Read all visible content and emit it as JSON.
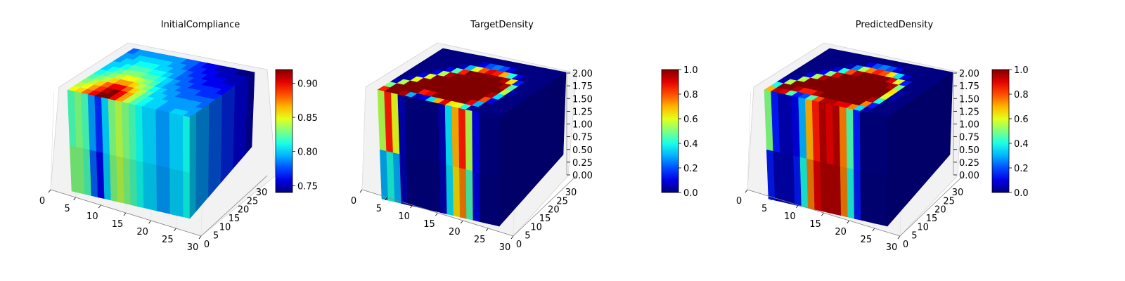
{
  "chart_data": [
    {
      "type": "3d-voxel",
      "title": "InitialCompliance",
      "x_ticks": [
        "0",
        "5",
        "10",
        "15",
        "20",
        "25",
        "30"
      ],
      "y_ticks": [
        "0",
        "5",
        "10",
        "15",
        "20",
        "25",
        "30"
      ],
      "z_ticks": [],
      "colormap": "jet",
      "colorbar": {
        "min": 0.74,
        "max": 0.92,
        "ticks": [
          "0.75",
          "0.80",
          "0.85",
          "0.90"
        ]
      },
      "top_face": [
        [
          0.85,
          0.86,
          0.88,
          0.9,
          0.92,
          0.92,
          0.9,
          0.87,
          0.84,
          0.82,
          0.81,
          0.8,
          0.8,
          0.79,
          0.79,
          0.8,
          0.8,
          0.79
        ],
        [
          0.84,
          0.85,
          0.87,
          0.89,
          0.91,
          0.92,
          0.9,
          0.87,
          0.84,
          0.82,
          0.81,
          0.8,
          0.8,
          0.79,
          0.79,
          0.79,
          0.79,
          0.79
        ],
        [
          0.83,
          0.84,
          0.86,
          0.88,
          0.9,
          0.9,
          0.88,
          0.86,
          0.84,
          0.82,
          0.8,
          0.8,
          0.79,
          0.79,
          0.79,
          0.79,
          0.79,
          0.78
        ],
        [
          0.82,
          0.83,
          0.84,
          0.86,
          0.87,
          0.87,
          0.86,
          0.84,
          0.83,
          0.81,
          0.8,
          0.79,
          0.79,
          0.78,
          0.78,
          0.78,
          0.78,
          0.78
        ],
        [
          0.81,
          0.82,
          0.83,
          0.84,
          0.85,
          0.85,
          0.84,
          0.83,
          0.82,
          0.8,
          0.79,
          0.79,
          0.78,
          0.78,
          0.78,
          0.77,
          0.77,
          0.77
        ],
        [
          0.8,
          0.81,
          0.82,
          0.83,
          0.83,
          0.83,
          0.82,
          0.82,
          0.81,
          0.8,
          0.79,
          0.78,
          0.78,
          0.77,
          0.77,
          0.77,
          0.77,
          0.76
        ],
        [
          0.8,
          0.8,
          0.81,
          0.82,
          0.82,
          0.82,
          0.81,
          0.81,
          0.8,
          0.79,
          0.78,
          0.78,
          0.77,
          0.77,
          0.76,
          0.76,
          0.76,
          0.76
        ],
        [
          0.79,
          0.8,
          0.8,
          0.81,
          0.81,
          0.81,
          0.8,
          0.8,
          0.79,
          0.79,
          0.78,
          0.77,
          0.77,
          0.76,
          0.76,
          0.76,
          0.75,
          0.75
        ],
        [
          0.79,
          0.79,
          0.8,
          0.8,
          0.8,
          0.8,
          0.8,
          0.79,
          0.79,
          0.78,
          0.77,
          0.77,
          0.76,
          0.76,
          0.75,
          0.75,
          0.75,
          0.75
        ],
        [
          0.78,
          0.79,
          0.79,
          0.79,
          0.79,
          0.79,
          0.79,
          0.79,
          0.78,
          0.78,
          0.77,
          0.76,
          0.76,
          0.75,
          0.75,
          0.75,
          0.74,
          0.74
        ]
      ],
      "front_face": [
        0.82,
        0.83,
        0.82,
        0.79,
        0.77,
        0.8,
        0.83,
        0.84,
        0.83,
        0.82,
        0.81,
        0.8,
        0.8,
        0.79,
        0.79,
        0.8,
        0.8,
        0.81
      ],
      "front_face_lower": [
        0.83,
        0.83,
        0.82,
        0.78,
        0.76,
        0.8,
        0.83,
        0.84,
        0.83,
        0.82,
        0.81,
        0.8,
        0.8,
        0.79,
        0.79,
        0.8,
        0.8,
        0.81
      ],
      "side_face": [
        0.8,
        0.79,
        0.79,
        0.78,
        0.78,
        0.77,
        0.77,
        0.76,
        0.76,
        0.75
      ]
    },
    {
      "type": "3d-voxel",
      "title": "TargetDensity",
      "x_ticks": [
        "0",
        "5",
        "10",
        "15",
        "20",
        "25",
        "30"
      ],
      "y_ticks": [
        "0",
        "5",
        "10",
        "15",
        "20",
        "25",
        "30"
      ],
      "z_ticks": [
        "0.00",
        "0.25",
        "0.50",
        "0.75",
        "1.00",
        "1.25",
        "1.50",
        "1.75",
        "2.00"
      ],
      "colormap": "jet",
      "colorbar": {
        "min": 0,
        "max": 1,
        "ticks": [
          "0.0",
          "0.2",
          "0.4",
          "0.6",
          "0.8",
          "1.0"
        ]
      },
      "top_face": [
        [
          0.85,
          1.0,
          1.0,
          0.95,
          0.3,
          0.05,
          0.1,
          0.35,
          0.7,
          0.9,
          0.65,
          0.6,
          0.4,
          0.05,
          0.0,
          0.0,
          0.0,
          0.0
        ],
        [
          0.5,
          1.0,
          1.0,
          1.0,
          1.0,
          0.85,
          0.9,
          1.0,
          1.0,
          1.0,
          1.0,
          1.0,
          0.9,
          0.3,
          0.0,
          0.0,
          0.0,
          0.0
        ],
        [
          0.05,
          0.55,
          1.0,
          1.0,
          1.0,
          1.0,
          1.0,
          1.0,
          1.0,
          1.0,
          1.0,
          1.0,
          1.0,
          0.8,
          0.1,
          0.0,
          0.0,
          0.0
        ],
        [
          0.0,
          0.05,
          0.6,
          1.0,
          1.0,
          1.0,
          1.0,
          1.0,
          1.0,
          1.0,
          1.0,
          1.0,
          1.0,
          0.95,
          0.35,
          0.0,
          0.0,
          0.0
        ],
        [
          0.0,
          0.0,
          0.1,
          0.6,
          1.0,
          1.0,
          1.0,
          1.0,
          1.0,
          1.0,
          1.0,
          1.0,
          1.0,
          1.0,
          0.55,
          0.05,
          0.0,
          0.0
        ],
        [
          0.0,
          0.0,
          0.0,
          0.1,
          0.55,
          0.95,
          1.0,
          1.0,
          1.0,
          1.0,
          1.0,
          1.0,
          1.0,
          0.95,
          0.45,
          0.0,
          0.0,
          0.0
        ],
        [
          0.0,
          0.0,
          0.0,
          0.0,
          0.1,
          0.45,
          0.85,
          1.0,
          1.0,
          1.0,
          1.0,
          1.0,
          0.95,
          0.65,
          0.15,
          0.0,
          0.0,
          0.0
        ],
        [
          0.0,
          0.0,
          0.0,
          0.0,
          0.0,
          0.05,
          0.3,
          0.6,
          0.8,
          0.9,
          0.85,
          0.7,
          0.4,
          0.1,
          0.0,
          0.0,
          0.0,
          0.0
        ],
        [
          0.0,
          0.0,
          0.0,
          0.0,
          0.0,
          0.0,
          0.0,
          0.1,
          0.2,
          0.25,
          0.2,
          0.1,
          0.0,
          0.0,
          0.0,
          0.0,
          0.0,
          0.0
        ],
        [
          0.0,
          0.0,
          0.0,
          0.0,
          0.0,
          0.0,
          0.0,
          0.0,
          0.0,
          0.0,
          0.0,
          0.0,
          0.0,
          0.0,
          0.0,
          0.0,
          0.0,
          0.0
        ]
      ],
      "front_face": [
        0.55,
        0.85,
        0.6,
        0.05,
        0.0,
        0.0,
        0.0,
        0.0,
        0.0,
        0.05,
        0.35,
        0.7,
        0.85,
        0.55,
        0.1,
        0.0,
        0.0,
        0.0
      ],
      "front_face_lower": [
        0.3,
        0.4,
        0.3,
        0.05,
        0.0,
        0.0,
        0.0,
        0.0,
        0.0,
        0.05,
        0.35,
        0.65,
        0.75,
        0.45,
        0.1,
        0.0,
        0.0,
        0.0
      ],
      "side_face": [
        0.02,
        0.02,
        0.02,
        0.02,
        0.02,
        0.02,
        0.02,
        0.02,
        0.02,
        0.02
      ]
    },
    {
      "type": "3d-voxel",
      "title": "PredictedDensity",
      "x_ticks": [
        "0",
        "5",
        "10",
        "15",
        "20",
        "25",
        "30"
      ],
      "y_ticks": [
        "0",
        "5",
        "10",
        "15",
        "20",
        "25",
        "30"
      ],
      "z_ticks": [
        "0.00",
        "0.25",
        "0.50",
        "0.75",
        "1.00",
        "1.25",
        "1.50",
        "1.75",
        "2.00"
      ],
      "colormap": "jet",
      "colorbar": {
        "min": 0,
        "max": 1,
        "ticks": [
          "0.0",
          "0.2",
          "0.4",
          "0.6",
          "0.8",
          "1.0"
        ]
      },
      "top_face": [
        [
          0.7,
          0.95,
          0.9,
          0.45,
          0.15,
          0.2,
          0.45,
          0.8,
          0.95,
          0.95,
          0.9,
          0.9,
          0.75,
          0.35,
          0.05,
          0.0,
          0.0,
          0.0
        ],
        [
          0.4,
          1.0,
          1.0,
          0.95,
          0.85,
          0.85,
          0.95,
          1.0,
          1.0,
          1.0,
          1.0,
          1.0,
          1.0,
          0.75,
          0.15,
          0.0,
          0.0,
          0.0
        ],
        [
          0.05,
          0.55,
          1.0,
          1.0,
          1.0,
          1.0,
          1.0,
          1.0,
          1.0,
          1.0,
          1.0,
          1.0,
          1.0,
          0.95,
          0.4,
          0.0,
          0.0,
          0.0
        ],
        [
          0.0,
          0.05,
          0.55,
          1.0,
          1.0,
          1.0,
          1.0,
          1.0,
          1.0,
          1.0,
          1.0,
          1.0,
          1.0,
          1.0,
          0.6,
          0.05,
          0.0,
          0.0
        ],
        [
          0.0,
          0.0,
          0.1,
          0.55,
          0.95,
          1.0,
          1.0,
          1.0,
          1.0,
          1.0,
          1.0,
          1.0,
          1.0,
          1.0,
          0.65,
          0.05,
          0.0,
          0.0
        ],
        [
          0.0,
          0.0,
          0.0,
          0.1,
          0.5,
          0.9,
          1.0,
          1.0,
          1.0,
          1.0,
          1.0,
          1.0,
          1.0,
          0.95,
          0.5,
          0.0,
          0.0,
          0.0
        ],
        [
          0.0,
          0.0,
          0.0,
          0.0,
          0.1,
          0.4,
          0.8,
          0.95,
          1.0,
          1.0,
          1.0,
          1.0,
          0.9,
          0.6,
          0.15,
          0.0,
          0.0,
          0.0
        ],
        [
          0.0,
          0.0,
          0.0,
          0.0,
          0.0,
          0.05,
          0.25,
          0.55,
          0.75,
          0.85,
          0.8,
          0.65,
          0.35,
          0.1,
          0.0,
          0.0,
          0.0,
          0.0
        ],
        [
          0.0,
          0.0,
          0.0,
          0.0,
          0.0,
          0.0,
          0.0,
          0.1,
          0.2,
          0.25,
          0.2,
          0.1,
          0.0,
          0.0,
          0.0,
          0.0,
          0.0,
          0.0
        ],
        [
          0.0,
          0.0,
          0.0,
          0.0,
          0.0,
          0.0,
          0.0,
          0.0,
          0.0,
          0.0,
          0.0,
          0.0,
          0.0,
          0.0,
          0.0,
          0.0,
          0.0,
          0.0
        ]
      ],
      "front_face": [
        0.5,
        0.15,
        0.05,
        0.05,
        0.1,
        0.3,
        0.7,
        0.85,
        0.95,
        0.9,
        0.95,
        0.75,
        0.45,
        0.15,
        0.0,
        0.0,
        0.0,
        0.0
      ],
      "front_face_lower": [
        0.15,
        0.05,
        0.05,
        0.05,
        0.15,
        0.4,
        0.75,
        0.9,
        0.95,
        0.95,
        0.95,
        0.75,
        0.4,
        0.15,
        0.0,
        0.0,
        0.0,
        0.0
      ],
      "side_face": [
        0.02,
        0.02,
        0.02,
        0.02,
        0.02,
        0.02,
        0.02,
        0.02,
        0.02,
        0.02
      ]
    }
  ]
}
